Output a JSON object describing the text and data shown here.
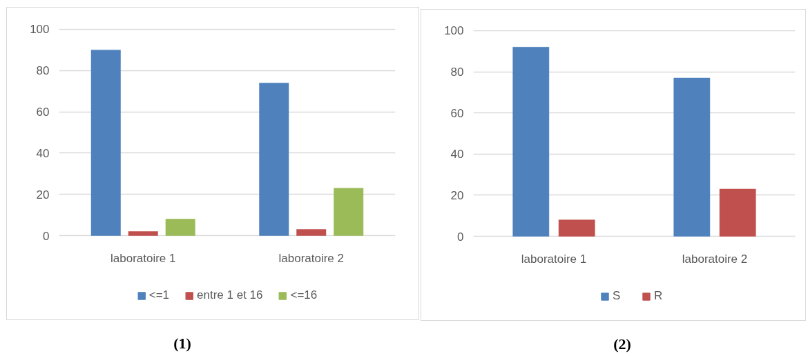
{
  "chart_data": [
    {
      "type": "bar",
      "categories": [
        "laboratoire 1",
        "laboratoire 2"
      ],
      "series": [
        {
          "name": "<=1",
          "color": "#4f81bd",
          "values": [
            90,
            74
          ]
        },
        {
          "name": "entre 1 et 16",
          "color": "#c0504d",
          "values": [
            2,
            3
          ]
        },
        {
          "name": "<=16",
          "color": "#9bbb59",
          "values": [
            8,
            23
          ]
        }
      ],
      "ylim": [
        0,
        100
      ],
      "yticks": [
        0,
        20,
        40,
        60,
        80,
        100
      ],
      "grid": "y",
      "legend": "bottom",
      "annotations": [
        "(1)"
      ]
    },
    {
      "type": "bar",
      "categories": [
        "laboratoire 1",
        "laboratoire 2"
      ],
      "series": [
        {
          "name": "S",
          "color": "#4f81bd",
          "values": [
            92,
            77
          ]
        },
        {
          "name": "R",
          "color": "#c0504d",
          "values": [
            8,
            23
          ]
        }
      ],
      "ylim": [
        0,
        100
      ],
      "yticks": [
        0,
        20,
        40,
        60,
        80,
        100
      ],
      "grid": "y",
      "legend": "bottom",
      "annotations": [
        "(2)"
      ]
    }
  ]
}
